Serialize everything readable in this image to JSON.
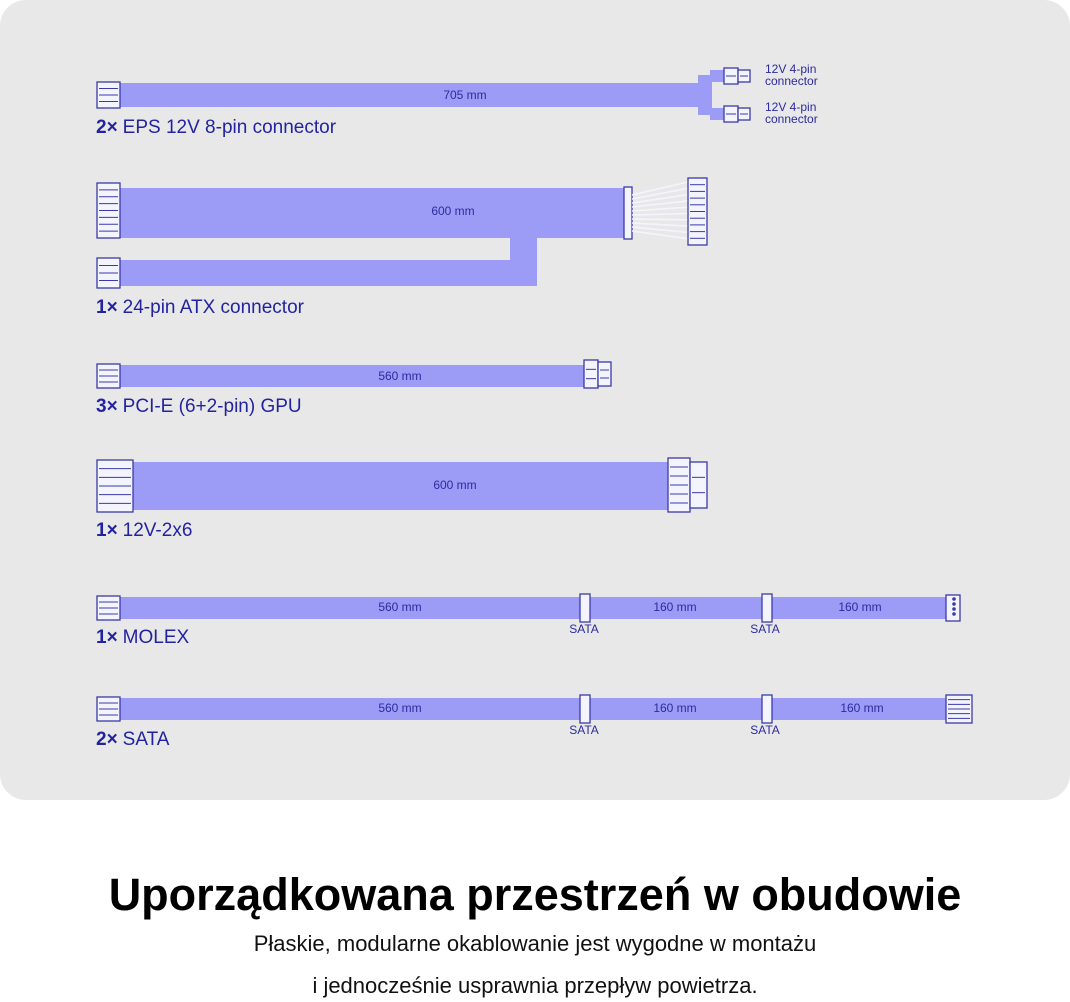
{
  "cables": [
    {
      "count": "2×",
      "name": "EPS 12V 8-pin connector",
      "lengths": [
        "705 mm"
      ],
      "branches": [
        [
          "12V 4-pin",
          "connector"
        ],
        [
          "12V 4-pin",
          "connector"
        ]
      ]
    },
    {
      "count": "1×",
      "name": "24-pin ATX connector",
      "lengths": [
        "600 mm"
      ]
    },
    {
      "count": "3×",
      "name": "PCI-E (6+2-pin) GPU",
      "lengths": [
        "560 mm"
      ]
    },
    {
      "count": "1×",
      "name": "12V-2x6",
      "lengths": [
        "600 mm"
      ]
    },
    {
      "count": "1×",
      "name": "MOLEX",
      "lengths": [
        "560 mm",
        "160 mm",
        "160 mm"
      ],
      "taps": [
        "SATA",
        "SATA"
      ]
    },
    {
      "count": "2×",
      "name": "SATA",
      "lengths": [
        "560 mm",
        "160 mm",
        "160 mm"
      ],
      "taps": [
        "SATA",
        "SATA"
      ]
    }
  ],
  "heading": "Uporządkowana przestrzeń w obudowie",
  "subtitle": [
    "Płaskie, modularne okablowanie jest wygodne w montażu",
    "i jednocześnie usprawnia przepływ powietrza."
  ]
}
